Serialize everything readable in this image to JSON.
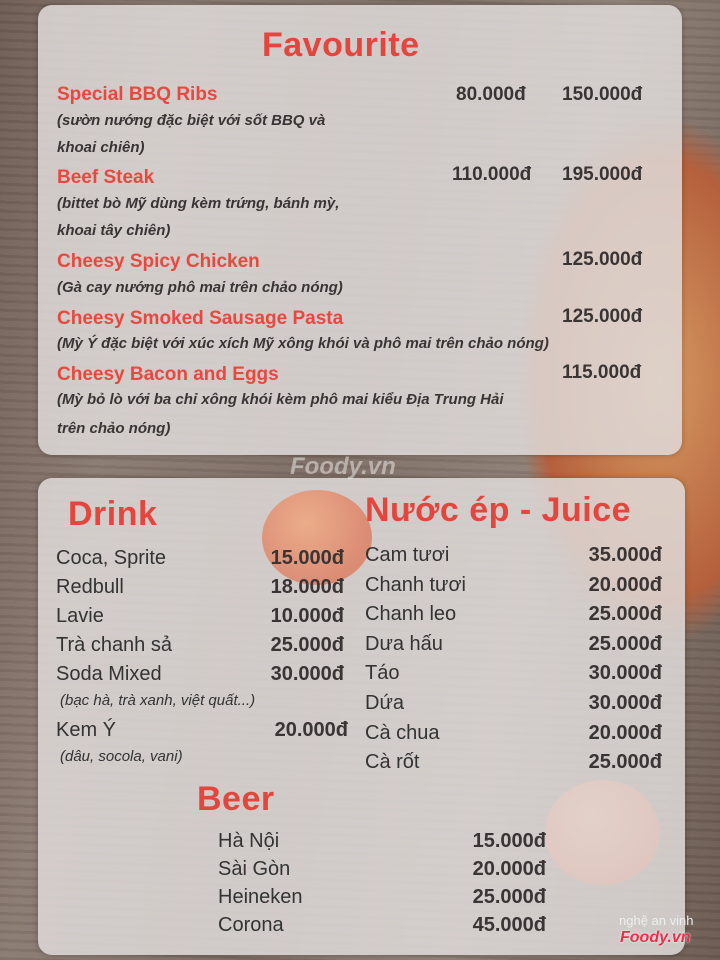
{
  "favourite": {
    "title": "Favourite",
    "items": [
      {
        "name": "Special BBQ Ribs",
        "desc1": "(sườn nướng đặc biệt với sốt BBQ và",
        "desc2": "khoai chiên)",
        "price1": "80.000đ",
        "price2": "150.000đ"
      },
      {
        "name": "Beef Steak",
        "desc1": "(bittet bò Mỹ dùng kèm trứng, bánh mỳ,",
        "desc2": "khoai tây chiên)",
        "price1": "110.000đ",
        "price2": "195.000đ"
      },
      {
        "name": "Cheesy Spicy Chicken",
        "desc1": "(Gà cay nướng phô mai trên chảo nóng)",
        "price": "125.000đ"
      },
      {
        "name": "Cheesy Smoked Sausage Pasta",
        "desc1": "(Mỳ Ý đặc biệt với xúc xích Mỹ xông khói và phô mai trên chảo nóng)",
        "price": "125.000đ"
      },
      {
        "name": "Cheesy Bacon and Eggs",
        "desc1": "(Mỳ bỏ lò với ba chỉ xông khói kèm phô mai kiểu Địa Trung Hải",
        "desc2": "trên chảo nóng)",
        "price": "115.000đ"
      }
    ]
  },
  "drink": {
    "title": "Drink",
    "items": [
      {
        "name": "Coca, Sprite",
        "price": "15.000đ"
      },
      {
        "name": "Redbull",
        "price": "18.000đ"
      },
      {
        "name": "Lavie",
        "price": "10.000đ"
      },
      {
        "name": "Trà chanh sả",
        "price": "25.000đ"
      },
      {
        "name": "Soda Mixed",
        "price": "30.000đ",
        "sub": "(bạc hà, trà xanh, việt quất...)"
      },
      {
        "name": "Kem Ý",
        "price": "20.000đ",
        "sub": "(dâu, socola, vani)"
      }
    ]
  },
  "juice": {
    "title": "Nước ép - Juice",
    "items": [
      {
        "name": "Cam tươi",
        "price": "35.000đ"
      },
      {
        "name": "Chanh tươi",
        "price": "20.000đ"
      },
      {
        "name": "Chanh leo",
        "price": "25.000đ"
      },
      {
        "name": "Dưa hấu",
        "price": "25.000đ"
      },
      {
        "name": "Táo",
        "price": "30.000đ"
      },
      {
        "name": "Dứa",
        "price": "30.000đ"
      },
      {
        "name": "Cà chua",
        "price": "20.000đ"
      },
      {
        "name": "Cà rốt",
        "price": "25.000đ"
      }
    ]
  },
  "beer": {
    "title": "Beer",
    "items": [
      {
        "name": "Hà Nội",
        "price": "15.000đ"
      },
      {
        "name": "Sài Gòn",
        "price": "20.000đ"
      },
      {
        "name": "Heineken",
        "price": "25.000đ"
      },
      {
        "name": "Corona",
        "price": "45.000đ"
      }
    ]
  },
  "watermark": {
    "center": "Foody.vn",
    "user": "nghệ an vinh",
    "logo": "Foody.vn"
  },
  "colors": {
    "accent": "#e8493f",
    "text": "#3a3535"
  }
}
